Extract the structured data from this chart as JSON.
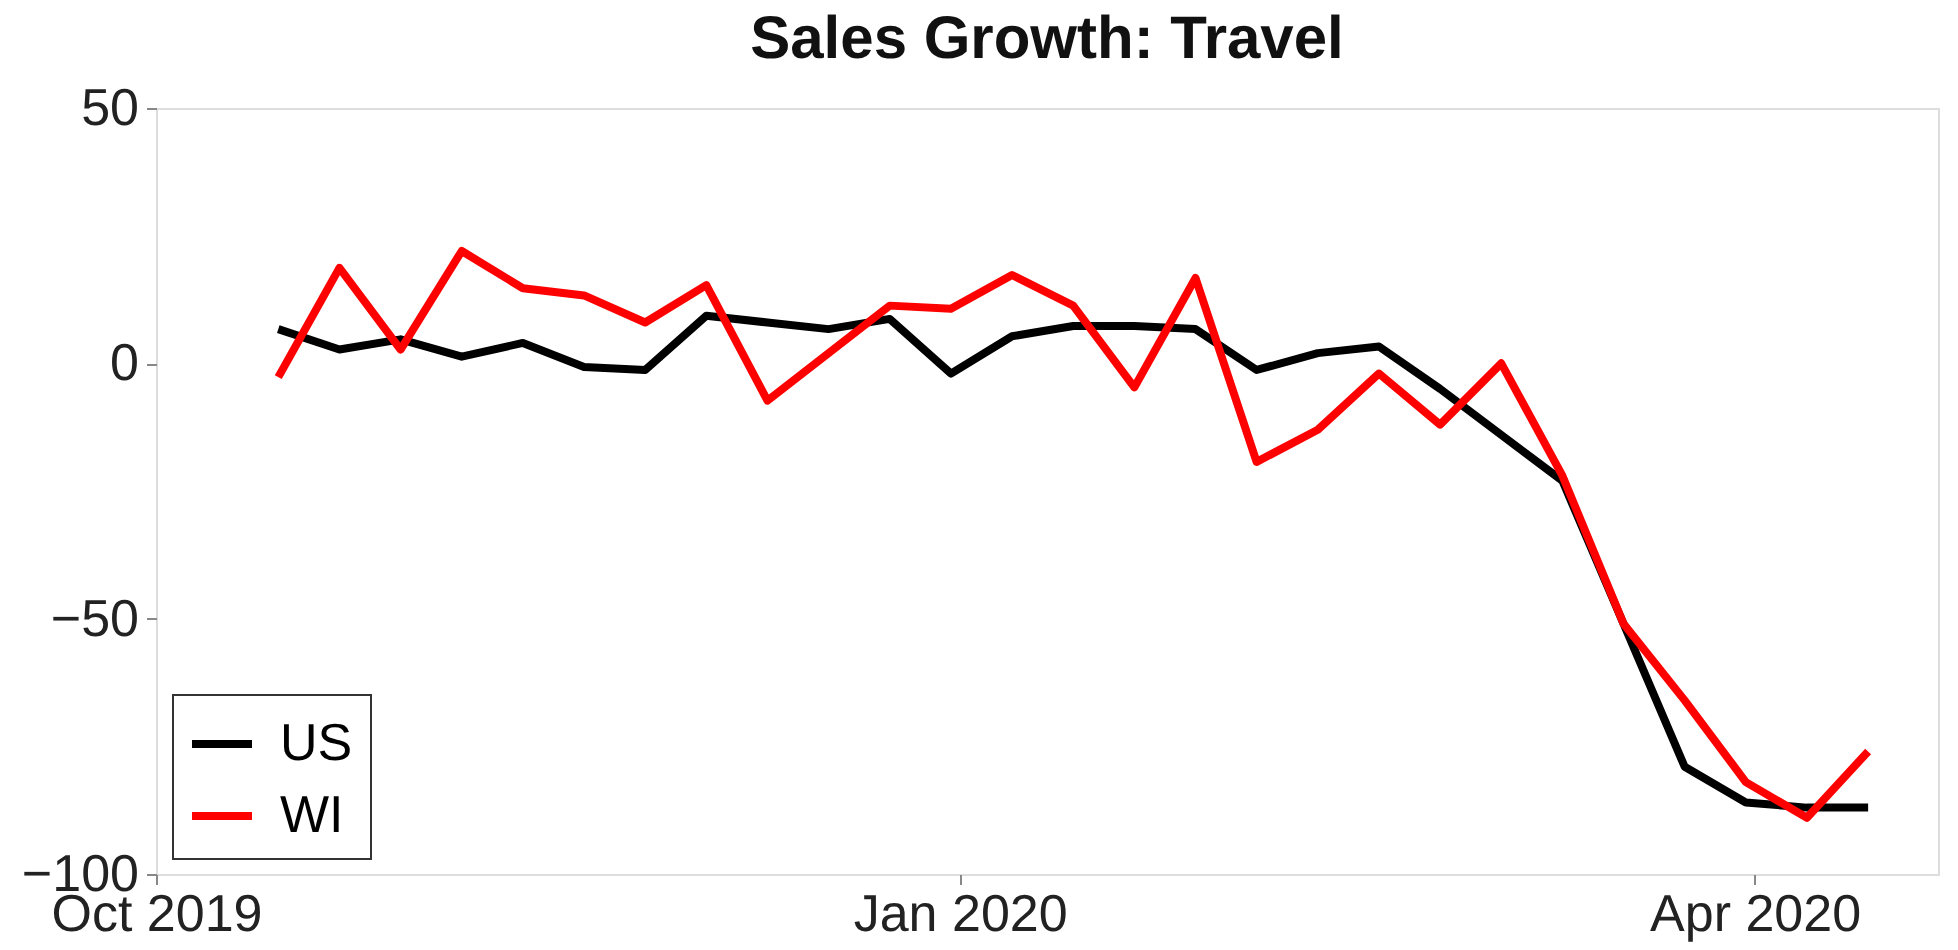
{
  "chart_data": {
    "type": "line",
    "title": "Sales Growth: Travel",
    "x": [
      "2019-10-15",
      "2019-10-22",
      "2019-10-29",
      "2019-11-05",
      "2019-11-12",
      "2019-11-19",
      "2019-11-26",
      "2019-12-03",
      "2019-12-10",
      "2019-12-17",
      "2019-12-24",
      "2019-12-31",
      "2020-01-07",
      "2020-01-14",
      "2020-01-21",
      "2020-01-28",
      "2020-02-04",
      "2020-02-11",
      "2020-02-18",
      "2020-02-25",
      "2020-03-03",
      "2020-03-10",
      "2020-03-17",
      "2020-03-24",
      "2020-03-31",
      "2020-04-07",
      "2020-04-14"
    ],
    "series": [
      {
        "name": "US",
        "color": "#000000",
        "values": [
          6.7,
          2.7,
          4.7,
          1.3,
          4,
          -0.7,
          -1.3,
          9.3,
          8,
          6.7,
          8.7,
          -2,
          5.3,
          7.3,
          7.3,
          6.7,
          -1.3,
          2,
          3.3,
          -5,
          -14,
          -23,
          -51,
          -79,
          -86,
          -87,
          -87
        ]
      },
      {
        "name": "WI",
        "color": "#ff0000",
        "values": [
          -2.7,
          18.7,
          2.7,
          22,
          14.7,
          13.3,
          8,
          15.3,
          -7.3,
          2,
          11.3,
          10.7,
          17.3,
          11.3,
          -4.7,
          16.7,
          -19.3,
          -13,
          -2,
          -12,
          0,
          -22,
          -51,
          -66,
          -82,
          -89,
          -76
        ]
      }
    ],
    "xlim": [
      "2019-10-01",
      "2020-04-22"
    ],
    "xticks": [
      {
        "value": "2019-10-01",
        "label": "Oct 2019"
      },
      {
        "value": "2020-01-01",
        "label": "Jan 2020"
      },
      {
        "value": "2020-04-01",
        "label": "Apr 2020"
      }
    ],
    "ylim": [
      -100,
      50
    ],
    "yticks": [
      -100,
      -50,
      0,
      50
    ],
    "grid": false,
    "legend": "bottom left",
    "marker": "none",
    "line_style": "solid"
  }
}
